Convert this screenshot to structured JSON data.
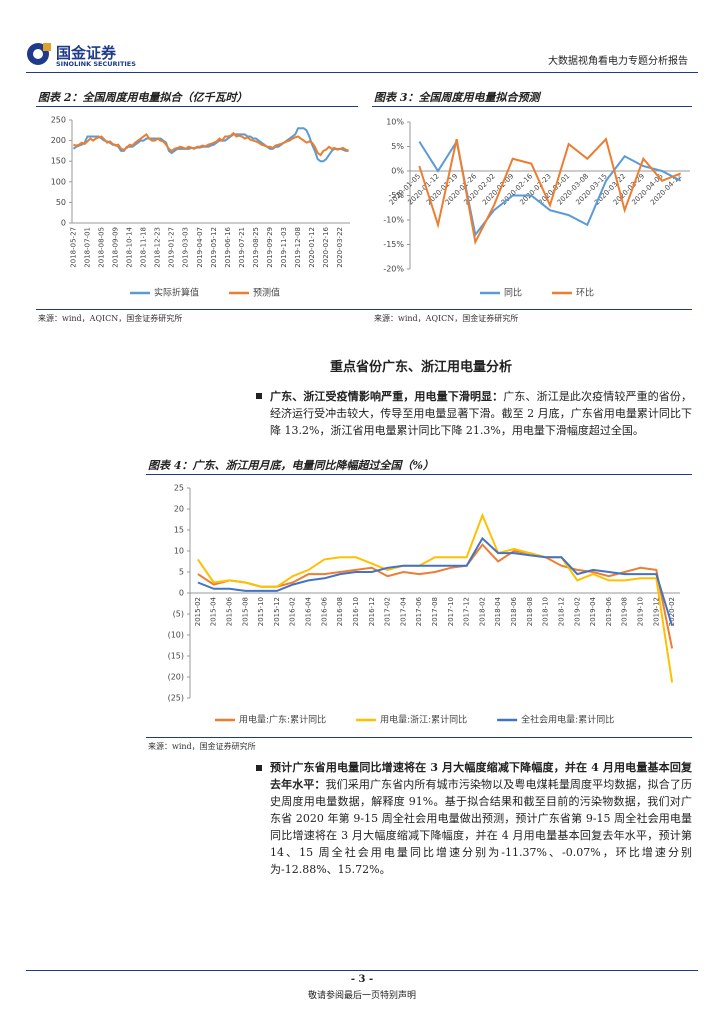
{
  "header": {
    "company": "国金证券",
    "company_en": "SINOLINK SECURITIES",
    "report_title": "大数据视角看电力专题分析报告"
  },
  "section": {
    "heading": "重点省份广东、浙江用电量分析"
  },
  "paragraphs": [
    {
      "bold": "广东、浙江受疫情影响严重，用电量下滑明显：",
      "text": "广东、浙江是此次疫情较严重的省份，经济运行受冲击较大，传导至用电量显著下滑。截至 2 月底，广东省用电量累计同比下降 13.2%，浙江省用电量累计同比下降 21.3%，用电量下滑幅度超过全国。"
    },
    {
      "bold": "预计广东省用电量同比增速将在 3 月大幅度缩减下降幅度，并在 4 月用电量基本回复去年水平：",
      "text": "我们采用广东省内所有城市污染物以及粤电煤耗量周度平均数据，拟合了历史周度用电量数据，解释度 91%。基于拟合结果和截至目前的污染物数据，我们对广东省 2020 年第 9-15 周全社会用电量做出预测，预计广东省第 9-15 周全社会用电量同比增速将在 3 月大幅度缩减下降幅度，并在 4 月用电量基本回复去年水平，预计第 14、15 周全社会用电量同比增速分别为-11.37%、-0.07%，环比增速分别为-12.88%、15.72%。"
    }
  ],
  "footer": {
    "page": "- 3 -",
    "disclaimer": "敬请参阅最后一页特别声明"
  },
  "chart_data": [
    {
      "type": "line",
      "title": "图表 2：全国周度用电量拟合（亿千瓦时）",
      "source": "来源：wind，AQICN，国金证券研究所",
      "categories": [
        "2018-05-27",
        null,
        null,
        null,
        null,
        "2018-07-01",
        null,
        null,
        null,
        null,
        "2018-08-05",
        null,
        null,
        null,
        null,
        "2018-09-09",
        null,
        null,
        null,
        null,
        "2018-10-14",
        null,
        null,
        null,
        null,
        "2018-11-18",
        null,
        null,
        null,
        null,
        "2018-12-23",
        null,
        null,
        null,
        null,
        "2019-01-27",
        null,
        null,
        null,
        null,
        "2019-03-03",
        null,
        null,
        null,
        null,
        "2019-04-07",
        null,
        null,
        null,
        null,
        "2019-05-12",
        null,
        null,
        null,
        null,
        "2019-06-16",
        null,
        null,
        null,
        null,
        "2019-07-21",
        null,
        null,
        null,
        null,
        "2019-08-25",
        null,
        null,
        null,
        null,
        "2019-09-29",
        null,
        null,
        null,
        null,
        "2019-11-03",
        null,
        null,
        null,
        null,
        "2019-12-08",
        null,
        null,
        null,
        null,
        "2020-01-12",
        null,
        null,
        null,
        null,
        "2020-02-16",
        null,
        null,
        null,
        null,
        "2020-03-22",
        null,
        null,
        null
      ],
      "series": [
        {
          "name": "实际折算值",
          "color": "#5b9bd5",
          "values": [
            180,
            185,
            188,
            190,
            195,
            210,
            210,
            210,
            210,
            210,
            205,
            200,
            198,
            195,
            190,
            190,
            185,
            175,
            175,
            185,
            185,
            185,
            190,
            195,
            200,
            200,
            205,
            205,
            205,
            205,
            205,
            205,
            200,
            195,
            175,
            170,
            175,
            180,
            180,
            180,
            180,
            180,
            182,
            182,
            183,
            183,
            185,
            185,
            185,
            188,
            190,
            195,
            200,
            200,
            200,
            205,
            210,
            215,
            215,
            215,
            215,
            215,
            210,
            210,
            205,
            205,
            200,
            195,
            190,
            185,
            180,
            180,
            185,
            185,
            190,
            195,
            200,
            205,
            210,
            215,
            230,
            230,
            230,
            225,
            210,
            190,
            175,
            155,
            150,
            150,
            155,
            165,
            175,
            180,
            180,
            180,
            178,
            175,
            175
          ]
        },
        {
          "name": "预测值",
          "color": "#ed7d31",
          "values": [
            190,
            188,
            190,
            195,
            192,
            198,
            205,
            200,
            205,
            208,
            210,
            203,
            195,
            198,
            192,
            188,
            190,
            180,
            178,
            182,
            190,
            188,
            195,
            200,
            205,
            210,
            215,
            205,
            200,
            200,
            205,
            200,
            198,
            190,
            180,
            175,
            180,
            182,
            185,
            183,
            180,
            185,
            183,
            180,
            185,
            185,
            188,
            186,
            190,
            192,
            195,
            198,
            205,
            200,
            210,
            210,
            212,
            218,
            210,
            212,
            210,
            205,
            208,
            202,
            200,
            198,
            195,
            190,
            188,
            185,
            185,
            182,
            188,
            190,
            192,
            195,
            198,
            200,
            205,
            208,
            210,
            205,
            200,
            195,
            198,
            195,
            185,
            170,
            165,
            175,
            178,
            185,
            180,
            182,
            178,
            180,
            182,
            178,
            176
          ]
        }
      ],
      "ylim": [
        0,
        250
      ],
      "yticks": [
        0,
        50,
        100,
        150,
        200,
        250
      ],
      "legend": "bottom"
    },
    {
      "type": "line",
      "title": "图表 3：全国周度用电量拟合预测",
      "source": "来源：wind，AQICN，国金证券研究所",
      "categories": [
        "2020-01-05",
        "2020-01-12",
        "2020-01-19",
        "2020-01-26",
        "2020-02-02",
        "2020-02-09",
        "2020-02-16",
        "2020-02-23",
        "2020-03-01",
        "2020-03-08",
        "2020-03-15",
        "2020-03-22",
        "2020-03-29",
        "2020-04-05",
        "2020-04-12"
      ],
      "series": [
        {
          "name": "同比",
          "color": "#5b9bd5",
          "values": [
            6,
            0,
            6,
            -13,
            -8,
            -5,
            -5,
            -8,
            -9,
            -11,
            -2,
            3,
            1,
            0,
            -2
          ]
        },
        {
          "name": "环比",
          "color": "#ed7d31",
          "values": [
            1,
            -11,
            6.5,
            -14.5,
            -7,
            2.5,
            1.5,
            -7,
            5.5,
            2.5,
            6.5,
            -8,
            2.5,
            -2,
            -0.5
          ]
        }
      ],
      "ylim": [
        -20,
        10
      ],
      "yticks": [
        {
          "value": -20,
          "label": "-20%"
        },
        {
          "value": -15,
          "label": "-15%"
        },
        {
          "value": -10,
          "label": "-10%"
        },
        {
          "value": -5,
          "label": "-5%"
        },
        {
          "value": 0,
          "label": "0%"
        },
        {
          "value": 5,
          "label": "5%"
        },
        {
          "value": 10,
          "label": "10%"
        }
      ],
      "legend": "bottom"
    },
    {
      "type": "line",
      "title": "图表 4：广东、浙江用月底，电量同比降幅超过全国（%）",
      "source": "来源：wind，国金证券研究所",
      "categories": [
        "2015-02",
        "2015-04",
        "2015-06",
        "2015-08",
        "2015-10",
        "2015-12",
        "2016-02",
        "2016-04",
        "2016-06",
        "2016-08",
        "2016-10",
        "2016-12",
        "2017-02",
        "2017-04",
        "2017-06",
        "2017-08",
        "2017-10",
        "2017-12",
        "2018-02",
        "2018-04",
        "2018-06",
        "2018-08",
        "2018-10",
        "2018-12",
        "2019-02",
        "2019-04",
        "2019-06",
        "2019-08",
        "2019-10",
        "2019-12",
        "2020-02"
      ],
      "series": [
        {
          "name": "用电量:广东:累计同比",
          "color": "#ed7d31",
          "values": [
            4.5,
            2,
            3,
            2.5,
            1.5,
            1.5,
            2.5,
            4.5,
            4.5,
            5,
            5.5,
            6,
            4,
            5,
            4.5,
            5,
            6,
            6.5,
            11.5,
            7.5,
            10,
            9.5,
            8.5,
            6.5,
            5.5,
            5,
            4,
            5,
            6,
            5.5,
            -13.2
          ]
        },
        {
          "name": "用电量:浙江:累计同比",
          "color": "#ffc000",
          "values": [
            8,
            2.5,
            3,
            2.5,
            1.5,
            1.5,
            4,
            5.5,
            8,
            8.5,
            8.5,
            7,
            5.5,
            6.5,
            6.5,
            8.5,
            8.5,
            8.5,
            18.5,
            9.5,
            10.5,
            9.5,
            8.5,
            8.5,
            3,
            4.5,
            3,
            3,
            3.5,
            3.5,
            -21.3
          ]
        },
        {
          "name": "全社会用电量:累计同比",
          "color": "#4472c4",
          "values": [
            2.5,
            1,
            1,
            0.5,
            0.5,
            0.5,
            2,
            3,
            3.5,
            4.5,
            5,
            5,
            6,
            6.5,
            6.5,
            6.5,
            6.5,
            6.5,
            13,
            9.5,
            9.5,
            9,
            8.5,
            8.5,
            4.5,
            5.5,
            5,
            4.5,
            4.5,
            4.5,
            -7.8
          ]
        }
      ],
      "ylim": [
        -25,
        25
      ],
      "yticks": [
        {
          "value": -25,
          "label": "(25)"
        },
        {
          "value": -20,
          "label": "(20)"
        },
        {
          "value": -15,
          "label": "(15)"
        },
        {
          "value": -10,
          "label": "(10)"
        },
        {
          "value": -5,
          "label": "(5)"
        },
        0,
        5,
        10,
        15,
        20,
        25
      ],
      "legend": "bottom"
    }
  ]
}
